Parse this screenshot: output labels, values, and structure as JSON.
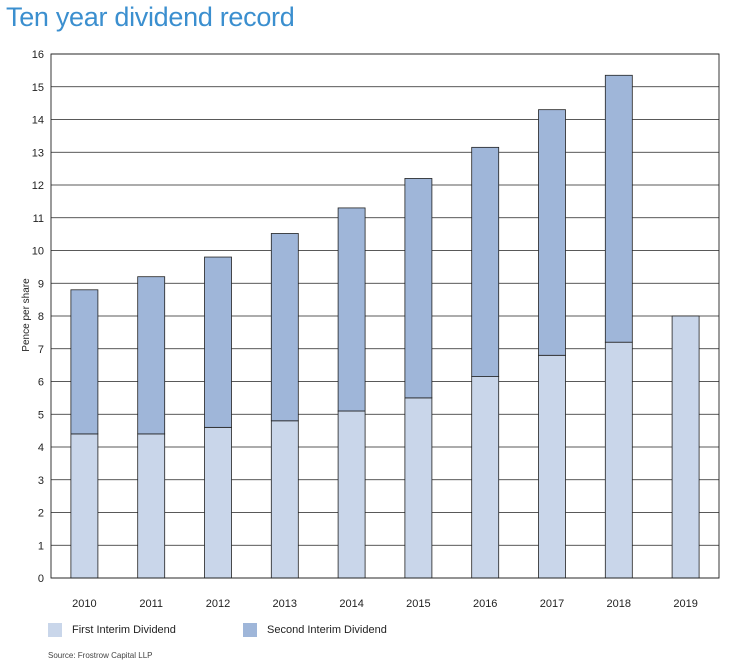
{
  "chart_data": {
    "type": "bar",
    "stacked": true,
    "title": "Ten year dividend record",
    "ylabel": "Pence per share",
    "xlabel": "",
    "ylim": [
      0,
      16
    ],
    "yticks": [
      0,
      1,
      2,
      3,
      4,
      5,
      6,
      7,
      8,
      9,
      10,
      11,
      12,
      13,
      14,
      15,
      16
    ],
    "grid": true,
    "categories": [
      "2010",
      "2011",
      "2012",
      "2013",
      "2014",
      "2015",
      "2016",
      "2017",
      "2018",
      "2019"
    ],
    "series": [
      {
        "name": "First Interim Dividend",
        "color": "#c9d6ea",
        "values": [
          4.4,
          4.4,
          4.6,
          4.8,
          5.1,
          5.5,
          6.15,
          6.8,
          7.2,
          8.0
        ]
      },
      {
        "name": "Second Interim Dividend",
        "color": "#9fb6d9",
        "values": [
          4.4,
          4.8,
          5.2,
          5.72,
          6.2,
          6.7,
          7.0,
          7.5,
          8.15,
          0
        ]
      }
    ],
    "legend_position": "bottom-left",
    "source": "Source: Frostrow Capital LLP"
  }
}
